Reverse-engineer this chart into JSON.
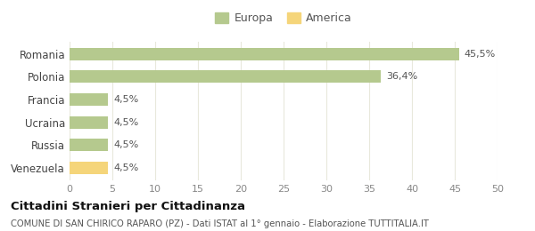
{
  "categories": [
    "Venezuela",
    "Russia",
    "Ucraina",
    "Francia",
    "Polonia",
    "Romania"
  ],
  "values": [
    4.5,
    4.5,
    4.5,
    4.5,
    36.4,
    45.5
  ],
  "bar_colors": [
    "#f5d57a",
    "#b5c98e",
    "#b5c98e",
    "#b5c98e",
    "#b5c98e",
    "#b5c98e"
  ],
  "bar_labels": [
    "4,5%",
    "4,5%",
    "4,5%",
    "4,5%",
    "36,4%",
    "45,5%"
  ],
  "legend_labels": [
    "Europa",
    "America"
  ],
  "legend_colors": [
    "#b5c98e",
    "#f5d57a"
  ],
  "xlim": [
    0,
    50
  ],
  "xticks": [
    0,
    5,
    10,
    15,
    20,
    25,
    30,
    35,
    40,
    45,
    50
  ],
  "title": "Cittadini Stranieri per Cittadinanza",
  "subtitle": "COMUNE DI SAN CHIRICO RAPARO (PZ) - Dati ISTAT al 1° gennaio - Elaborazione TUTTITALIA.IT",
  "background_color": "#ffffff",
  "grid_color": "#e8e8dc"
}
